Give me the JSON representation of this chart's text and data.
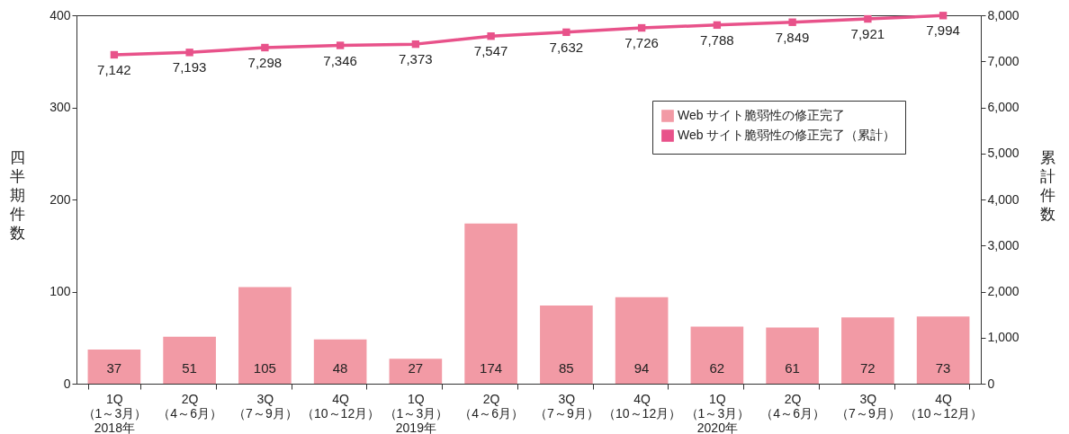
{
  "chart_data": {
    "type": "bar",
    "ylabel": "四半期件数",
    "y2label": "累計件数",
    "categories": [
      "1Q\n（1～3月）\n2018年",
      "2Q\n（4～6月）",
      "3Q\n（7～9月）",
      "4Q\n（10～12月）",
      "1Q\n（1～3月）\n2019年",
      "2Q\n（4～6月）",
      "3Q\n（7～9月）",
      "4Q\n（10～12月）",
      "1Q\n（1～3月）\n2020年",
      "2Q\n（4～6月）",
      "3Q\n（7～9月）",
      "4Q\n（10～12月）"
    ],
    "series": [
      {
        "name": "Web サイト脆弱性の修正完了",
        "color": "#f29aa5",
        "values": [
          37,
          51,
          105,
          48,
          27,
          174,
          85,
          94,
          62,
          61,
          72,
          73
        ]
      },
      {
        "name": "Web サイト脆弱性の修正完了（累計）",
        "type": "line",
        "axis": "y2",
        "color": "#e8528a",
        "values": [
          7142,
          7193,
          7298,
          7346,
          7373,
          7547,
          7632,
          7726,
          7788,
          7849,
          7921,
          7994
        ],
        "value_labels": [
          "7,142",
          "7,193",
          "7,298",
          "7,346",
          "7,373",
          "7,547",
          "7,632",
          "7,726",
          "7,788",
          "7,849",
          "7,921",
          "7,994"
        ]
      }
    ],
    "ylim": [
      0,
      400
    ],
    "yticks": [
      0,
      100,
      200,
      300,
      400
    ],
    "y2lim": [
      0,
      8000
    ],
    "y2ticks": [
      0,
      {
        "value": 1000,
        "label": "1,000"
      },
      {
        "value": 2000,
        "label": "2,000"
      },
      {
        "value": 3000,
        "label": "3,000"
      },
      {
        "value": 4000,
        "label": "4,000"
      },
      {
        "value": 5000,
        "label": "5,000"
      },
      {
        "value": 6000,
        "label": "6,000"
      },
      {
        "value": 7000,
        "label": "7,000"
      },
      {
        "value": 8000,
        "label": "8,000"
      }
    ],
    "data_labels": true,
    "grid": false,
    "legend": "top right",
    "marker": "square"
  }
}
